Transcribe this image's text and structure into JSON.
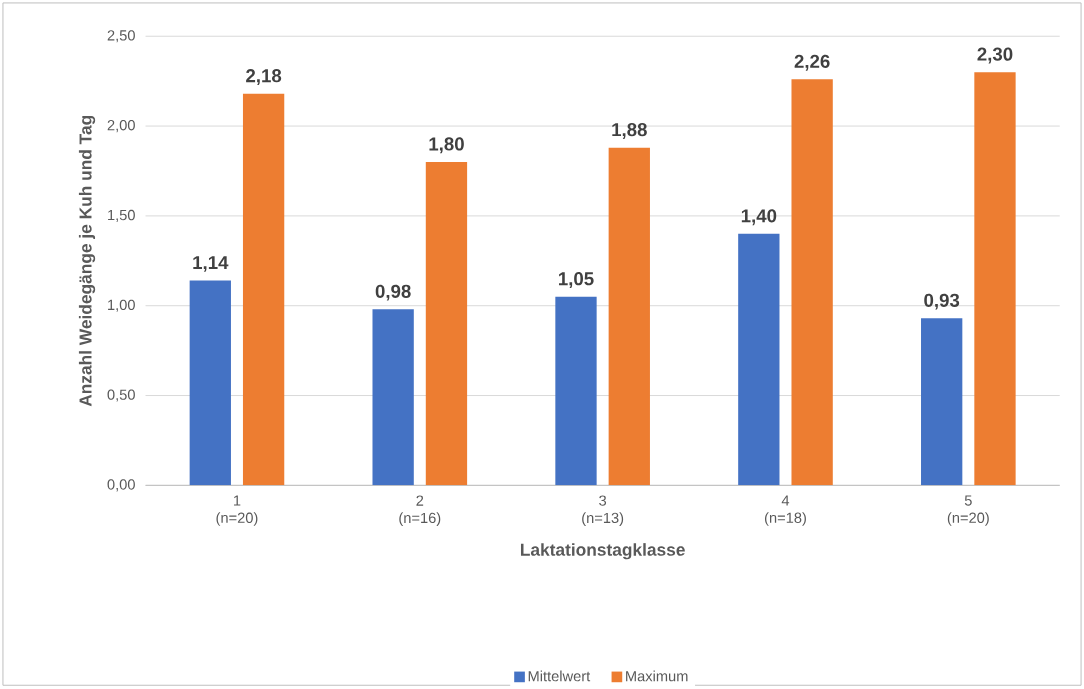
{
  "chart_data": {
    "type": "bar",
    "xlabel": "Laktationstagklasse",
    "ylabel": "Anzahl Weidegänge je Kuh und Tag",
    "categories": [
      "1 (n=20)",
      "2 (n=16)",
      "3 (n=13)",
      "4 (n=18)",
      "5 (n=20)"
    ],
    "series": [
      {
        "name": "Mittelwert",
        "color": "#4472c4",
        "values": [
          1.14,
          0.98,
          1.05,
          1.4,
          0.93
        ],
        "value_labels": [
          "1,14",
          "0,98",
          "1,05",
          "1,40",
          "0,93"
        ]
      },
      {
        "name": "Maximum",
        "color": "#ed7d31",
        "values": [
          2.18,
          1.8,
          1.88,
          2.26,
          2.3
        ],
        "value_labels": [
          "2,18",
          "1,80",
          "1,88",
          "2,26",
          "2,30"
        ]
      }
    ],
    "ylim": [
      0,
      2.5
    ],
    "yticks": [
      {
        "value": 0,
        "label": "0,00"
      },
      {
        "value": 0.5,
        "label": "0,50"
      },
      {
        "value": 1,
        "label": "1,00"
      },
      {
        "value": 1.5,
        "label": "1,50"
      },
      {
        "value": 2,
        "label": "2,00"
      },
      {
        "value": 2.5,
        "label": "2,50"
      }
    ],
    "grid": "y",
    "legend": "bottom"
  }
}
